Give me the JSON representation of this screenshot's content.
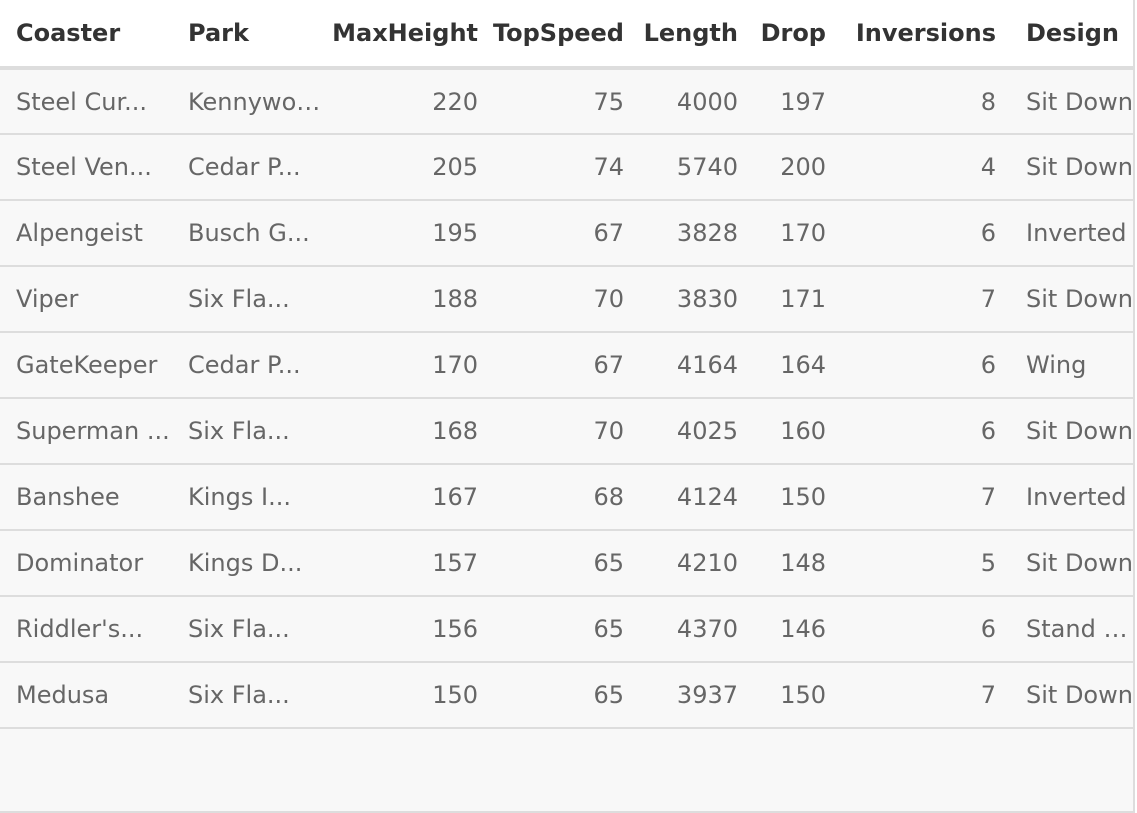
{
  "table": {
    "columns": [
      {
        "label": "Coaster",
        "numeric": false
      },
      {
        "label": "Park",
        "numeric": false
      },
      {
        "label": "MaxHeight",
        "numeric": true
      },
      {
        "label": "TopSpeed",
        "numeric": true
      },
      {
        "label": "Length",
        "numeric": true
      },
      {
        "label": "Drop",
        "numeric": true
      },
      {
        "label": "Inversions",
        "numeric": true
      },
      {
        "label": "Design",
        "numeric": false
      }
    ],
    "rows": [
      [
        "Steel Cur...",
        "Kennywood",
        "220",
        "75",
        "4000",
        "197",
        "8",
        "Sit Down"
      ],
      [
        "Steel Ven...",
        "Cedar P...",
        "205",
        "74",
        "5740",
        "200",
        "4",
        "Sit Down"
      ],
      [
        "Alpengeist",
        "Busch G...",
        "195",
        "67",
        "3828",
        "170",
        "6",
        "Inverted"
      ],
      [
        "Viper",
        "Six Fla...",
        "188",
        "70",
        "3830",
        "171",
        "7",
        "Sit Down"
      ],
      [
        "GateKeeper",
        "Cedar P...",
        "170",
        "67",
        "4164",
        "164",
        "6",
        "Wing"
      ],
      [
        "Superman ...",
        "Six Fla...",
        "168",
        "70",
        "4025",
        "160",
        "6",
        "Sit Down"
      ],
      [
        "Banshee",
        "Kings I...",
        "167",
        "68",
        "4124",
        "150",
        "7",
        "Inverted"
      ],
      [
        "Dominator",
        "Kings D...",
        "157",
        "65",
        "4210",
        "148",
        "5",
        "Sit Down"
      ],
      [
        "Riddler's...",
        "Six Fla...",
        "156",
        "65",
        "4370",
        "146",
        "6",
        "Stand Up"
      ],
      [
        "Medusa",
        "Six Fla...",
        "150",
        "65",
        "3937",
        "150",
        "7",
        "Sit Down"
      ]
    ]
  }
}
